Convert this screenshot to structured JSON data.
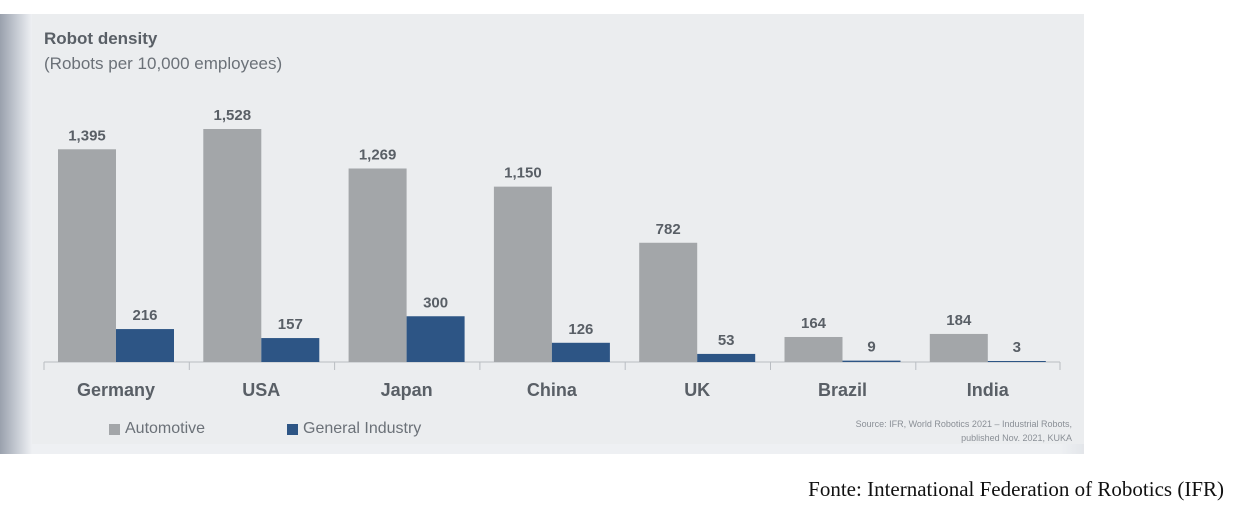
{
  "chart_data": {
    "type": "bar",
    "title": "Robot density",
    "subtitle": "(Robots per 10,000 employees)",
    "categories": [
      "Germany",
      "USA",
      "Japan",
      "China",
      "UK",
      "Brazil",
      "India"
    ],
    "series": [
      {
        "name": "Automotive",
        "color": "#a3a6a9",
        "values": [
          1395,
          1528,
          1269,
          1150,
          782,
          164,
          184
        ],
        "labels": [
          "1,395",
          "1,528",
          "1,269",
          "1,150",
          "782",
          "164",
          "184"
        ]
      },
      {
        "name": "General Industry",
        "color": "#2d5585",
        "values": [
          216,
          157,
          300,
          126,
          53,
          9,
          3
        ],
        "labels": [
          "216",
          "157",
          "300",
          "126",
          "53",
          "9",
          "3"
        ]
      }
    ],
    "ylim": [
      0,
      1528
    ],
    "grid": false,
    "legend_position": "bottom-left",
    "source_lines": [
      "Source: IFR, World Robotics 2021 – Industrial Robots,",
      "published Nov. 2021, KUKA"
    ]
  },
  "caption": "Fonte: International Federation of Robotics (IFR)"
}
